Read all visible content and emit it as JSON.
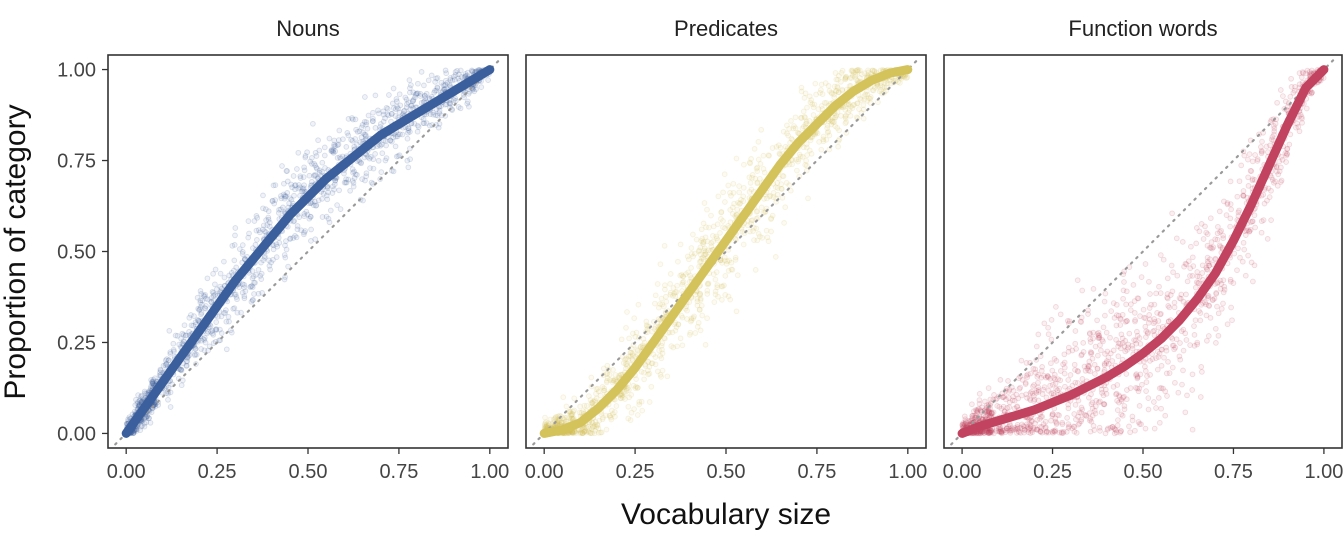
{
  "chart_data": {
    "type": "scatter",
    "xlabel": "Vocabulary size",
    "ylabel": "Proportion of category",
    "xlim": [
      -0.05,
      1.05
    ],
    "ylim": [
      -0.04,
      1.04
    ],
    "x_ticks": [
      0.0,
      0.25,
      0.5,
      0.75,
      1.0
    ],
    "x_tick_labels": [
      "0.00",
      "0.25",
      "0.50",
      "0.75",
      "1.00"
    ],
    "y_ticks": [
      0.0,
      0.25,
      0.5,
      0.75,
      1.0
    ],
    "y_tick_labels": [
      "0.00",
      "0.25",
      "0.50",
      "0.75",
      "1.00"
    ],
    "grid": false,
    "reference_line": "y = x (dotted)",
    "panels": [
      {
        "title": "Nouns",
        "color": "#3a5f9c",
        "curve": {
          "x": [
            0,
            0.05,
            0.1,
            0.15,
            0.2,
            0.25,
            0.3,
            0.35,
            0.4,
            0.45,
            0.5,
            0.55,
            0.6,
            0.65,
            0.7,
            0.75,
            0.8,
            0.85,
            0.9,
            0.95,
            1.0
          ],
          "y": [
            0,
            0.07,
            0.14,
            0.21,
            0.28,
            0.35,
            0.42,
            0.48,
            0.54,
            0.6,
            0.65,
            0.7,
            0.74,
            0.78,
            0.82,
            0.85,
            0.88,
            0.91,
            0.94,
            0.97,
            1.0
          ]
        }
      },
      {
        "title": "Predicates",
        "color": "#d4c35a",
        "curve": {
          "x": [
            0,
            0.05,
            0.1,
            0.15,
            0.2,
            0.25,
            0.3,
            0.35,
            0.4,
            0.45,
            0.5,
            0.55,
            0.6,
            0.65,
            0.7,
            0.75,
            0.8,
            0.85,
            0.9,
            0.95,
            1.0
          ],
          "y": [
            0,
            0.01,
            0.03,
            0.07,
            0.12,
            0.18,
            0.25,
            0.32,
            0.39,
            0.46,
            0.53,
            0.6,
            0.67,
            0.74,
            0.8,
            0.85,
            0.9,
            0.94,
            0.97,
            0.99,
            1.0
          ]
        }
      },
      {
        "title": "Function words",
        "color": "#c2435f",
        "curve": {
          "x": [
            0,
            0.05,
            0.1,
            0.15,
            0.2,
            0.25,
            0.3,
            0.35,
            0.4,
            0.45,
            0.5,
            0.55,
            0.6,
            0.65,
            0.7,
            0.75,
            0.8,
            0.85,
            0.9,
            0.95,
            1.0
          ],
          "y": [
            0,
            0.02,
            0.035,
            0.05,
            0.065,
            0.085,
            0.105,
            0.13,
            0.155,
            0.185,
            0.22,
            0.26,
            0.31,
            0.37,
            0.44,
            0.53,
            0.63,
            0.74,
            0.85,
            0.95,
            1.0
          ]
        }
      }
    ]
  }
}
